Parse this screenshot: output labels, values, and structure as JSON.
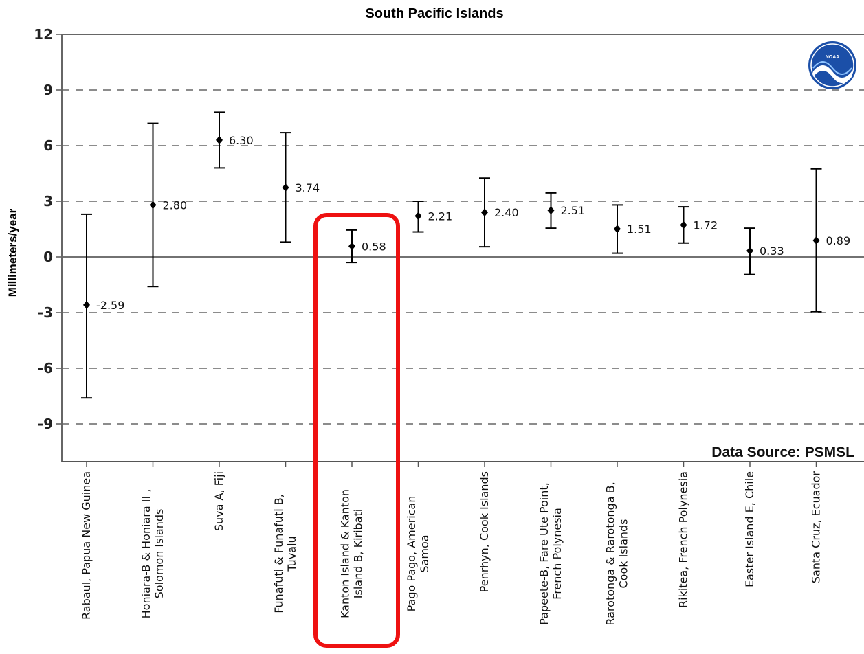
{
  "chart_data": {
    "type": "scatter",
    "title": "South Pacific Islands",
    "ylabel": "Millimeters/year",
    "xlabel": "",
    "ylim": [
      -12,
      12
    ],
    "yticks": [
      12,
      9,
      6,
      3,
      0,
      -3,
      -6,
      -9
    ],
    "ytick_labels": [
      "12",
      "9",
      "6",
      "3",
      "0",
      "-3",
      "-6",
      "-9"
    ],
    "grid": "horizontal dashed",
    "source_note": "Data Source: PSMSL",
    "logo": "NOAA",
    "highlight_index": 4,
    "highlight_color": "#ee1111",
    "marker_color": "#000000",
    "stations": [
      {
        "label": [
          "Rabaul, Papua New Guinea"
        ],
        "value": -2.59,
        "value_label": "-2.59",
        "lower": -7.6,
        "upper": 2.3
      },
      {
        "label": [
          "Honiara-B & Honiara II ,",
          "Solomon Islands"
        ],
        "value": 2.8,
        "value_label": "2.80",
        "lower": -1.6,
        "upper": 7.2
      },
      {
        "label": [
          "Suva A, Fiji"
        ],
        "value": 6.3,
        "value_label": "6.30",
        "lower": 4.8,
        "upper": 7.8
      },
      {
        "label": [
          "Funafuti & Funafuti B,",
          "Tuvalu"
        ],
        "value": 3.74,
        "value_label": "3.74",
        "lower": 0.8,
        "upper": 6.7
      },
      {
        "label": [
          "Kanton Island & Kanton",
          "Island B, Kiribati"
        ],
        "value": 0.58,
        "value_label": "0.58",
        "lower": -0.3,
        "upper": 1.45
      },
      {
        "label": [
          "Pago Pago, American",
          "Samoa"
        ],
        "value": 2.21,
        "value_label": "2.21",
        "lower": 1.35,
        "upper": 3.0
      },
      {
        "label": [
          "Penrhyn, Cook Islands"
        ],
        "value": 2.4,
        "value_label": "2.40",
        "lower": 0.55,
        "upper": 4.25
      },
      {
        "label": [
          "Papeete-B, Fare Ute Point,",
          "French Polynesia"
        ],
        "value": 2.51,
        "value_label": "2.51",
        "lower": 1.55,
        "upper": 3.45
      },
      {
        "label": [
          "Rarotonga & Rarotonga B,",
          "Cook Islands"
        ],
        "value": 1.51,
        "value_label": "1.51",
        "lower": 0.2,
        "upper": 2.8
      },
      {
        "label": [
          "Rikitea, French Polynesia"
        ],
        "value": 1.72,
        "value_label": "1.72",
        "lower": 0.75,
        "upper": 2.7
      },
      {
        "label": [
          "Easter Island E, Chile"
        ],
        "value": 0.33,
        "value_label": "0.33",
        "lower": -0.95,
        "upper": 1.55
      },
      {
        "label": [
          "Santa Cruz, Ecuador"
        ],
        "value": 0.89,
        "value_label": "0.89",
        "lower": -2.95,
        "upper": 4.75
      }
    ]
  }
}
